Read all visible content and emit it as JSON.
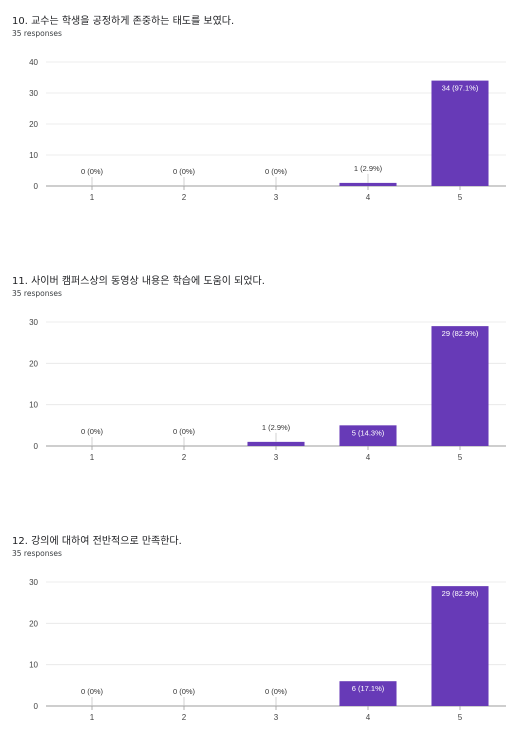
{
  "charts": [
    {
      "title": "10. 교수는 학생을 공정하게 존중하는 태도를 보였다.",
      "responses": "35 responses",
      "chart_data": {
        "type": "bar",
        "categories": [
          "1",
          "2",
          "3",
          "4",
          "5"
        ],
        "values": [
          0,
          0,
          0,
          1,
          34
        ],
        "labels": [
          "0 (0%)",
          "0 (0%)",
          "0 (0%)",
          "1 (2.9%)",
          "34 (97.1%)"
        ],
        "ylim": [
          0,
          40
        ],
        "yticks": [
          0,
          10,
          20,
          30,
          40
        ],
        "color": "#673ab7",
        "grid": true
      }
    },
    {
      "title": "11. 사이버 캠퍼스상의 동영상 내용은 학습에 도움이 되었다.",
      "responses": "35 responses",
      "chart_data": {
        "type": "bar",
        "categories": [
          "1",
          "2",
          "3",
          "4",
          "5"
        ],
        "values": [
          0,
          0,
          1,
          5,
          29
        ],
        "labels": [
          "0 (0%)",
          "0 (0%)",
          "1 (2.9%)",
          "5 (14.3%)",
          "29 (82.9%)"
        ],
        "ylim": [
          0,
          30
        ],
        "yticks": [
          0,
          10,
          20,
          30
        ],
        "color": "#673ab7",
        "grid": true
      }
    },
    {
      "title": "12. 강의에 대하여 전반적으로 만족한다.",
      "responses": "35 responses",
      "chart_data": {
        "type": "bar",
        "categories": [
          "1",
          "2",
          "3",
          "4",
          "5"
        ],
        "values": [
          0,
          0,
          0,
          6,
          29
        ],
        "labels": [
          "0 (0%)",
          "0 (0%)",
          "0 (0%)",
          "6 (17.1%)",
          "29 (82.9%)"
        ],
        "ylim": [
          0,
          30
        ],
        "yticks": [
          0,
          10,
          20,
          30
        ],
        "color": "#673ab7",
        "grid": true
      }
    }
  ]
}
